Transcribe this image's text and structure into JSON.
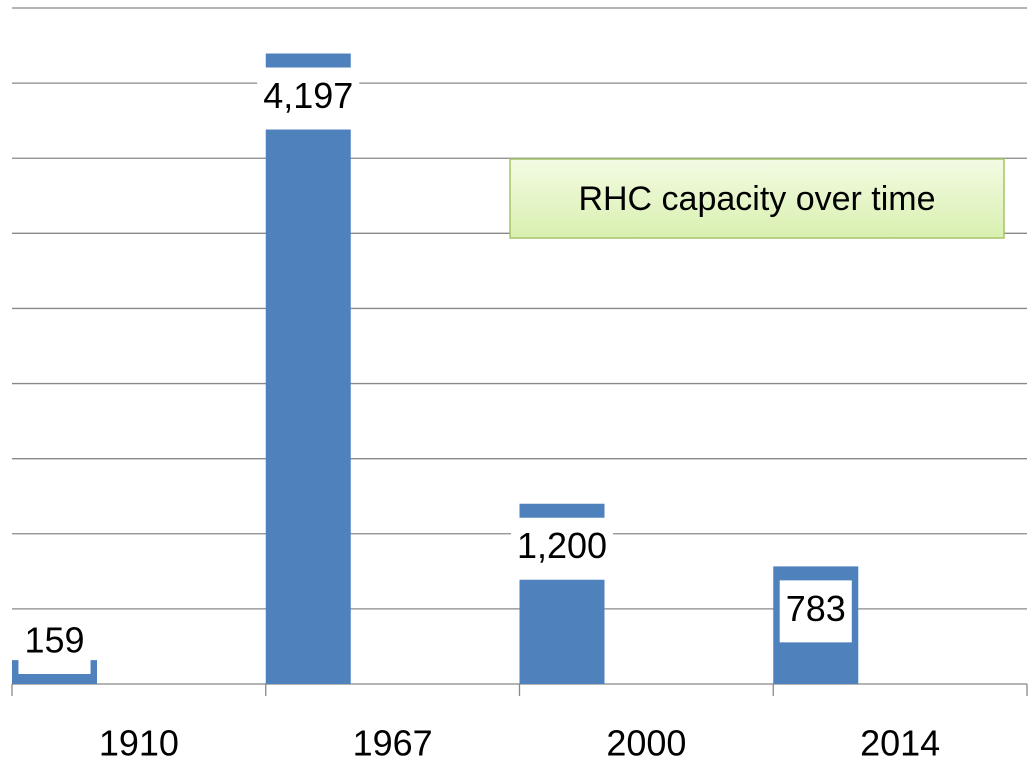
{
  "chart_data": {
    "type": "bar",
    "annotation": "RHC capacity over time",
    "categories": [
      "1910",
      "1967",
      "2000",
      "2014"
    ],
    "values": [
      159,
      4197,
      1200,
      783
    ],
    "value_labels": [
      "159",
      "4,197",
      "1,200",
      "783"
    ],
    "color": "#4f81bd",
    "ylim": [
      0,
      4500
    ],
    "yticks": [
      0,
      500,
      1000,
      1500,
      2000,
      2500,
      3000,
      3500,
      4000,
      4500
    ],
    "grid": true
  }
}
